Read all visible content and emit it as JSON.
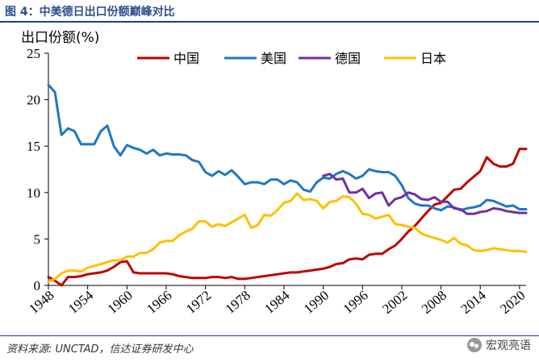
{
  "figure_title": "图 4：中美德日出口份额巅峰对比",
  "source": "资料来源: UNCTAD，信达证券研发中心",
  "watermark": "宏观亮语",
  "chart_data": {
    "type": "line",
    "ylabel": "出口份额(%)",
    "xlabel": "",
    "xlim": [
      1948,
      2021
    ],
    "ylim": [
      0,
      25
    ],
    "yticks": [
      0,
      5,
      10,
      15,
      20,
      25
    ],
    "xticks": [
      "1948",
      "1954",
      "1960",
      "1966",
      "1972",
      "1978",
      "1984",
      "1990",
      "1996",
      "2002",
      "2008",
      "2014",
      "2020"
    ],
    "legend_position": "top",
    "grid": false,
    "series": [
      {
        "name": "中国",
        "color": "#c00000",
        "x": [
          1948,
          1949,
          1950,
          1951,
          1952,
          1953,
          1954,
          1955,
          1956,
          1957,
          1958,
          1959,
          1960,
          1961,
          1962,
          1963,
          1964,
          1965,
          1966,
          1967,
          1968,
          1969,
          1970,
          1971,
          1972,
          1973,
          1974,
          1975,
          1976,
          1977,
          1978,
          1979,
          1980,
          1981,
          1982,
          1983,
          1984,
          1985,
          1986,
          1987,
          1988,
          1989,
          1990,
          1991,
          1992,
          1993,
          1994,
          1995,
          1996,
          1997,
          1998,
          1999,
          2000,
          2001,
          2002,
          2003,
          2004,
          2005,
          2006,
          2007,
          2008,
          2009,
          2010,
          2011,
          2012,
          2013,
          2014,
          2015,
          2016,
          2017,
          2018,
          2019,
          2020,
          2021
        ],
        "y": [
          0.9,
          0.5,
          0.0,
          0.9,
          0.9,
          1.0,
          1.2,
          1.3,
          1.4,
          1.6,
          2.0,
          2.5,
          2.6,
          1.4,
          1.3,
          1.3,
          1.3,
          1.3,
          1.3,
          1.2,
          1.0,
          0.9,
          0.8,
          0.8,
          0.8,
          0.9,
          0.9,
          0.8,
          0.9,
          0.7,
          0.7,
          0.8,
          0.9,
          1.0,
          1.1,
          1.2,
          1.3,
          1.4,
          1.4,
          1.5,
          1.6,
          1.7,
          1.8,
          2.0,
          2.3,
          2.4,
          2.8,
          2.9,
          2.8,
          3.3,
          3.4,
          3.4,
          3.9,
          4.3,
          5.0,
          5.8,
          6.4,
          7.2,
          8.0,
          8.7,
          8.9,
          9.6,
          10.3,
          10.4,
          11.1,
          11.7,
          12.3,
          13.8,
          13.1,
          12.8,
          12.8,
          13.1,
          14.7,
          14.7
        ]
      },
      {
        "name": "美国",
        "color": "#1f77c4",
        "x": [
          1948,
          1949,
          1950,
          1951,
          1952,
          1953,
          1954,
          1955,
          1956,
          1957,
          1958,
          1959,
          1960,
          1961,
          1962,
          1963,
          1964,
          1965,
          1966,
          1967,
          1968,
          1969,
          1970,
          1971,
          1972,
          1973,
          1974,
          1975,
          1976,
          1977,
          1978,
          1979,
          1980,
          1981,
          1982,
          1983,
          1984,
          1985,
          1986,
          1987,
          1988,
          1989,
          1990,
          1991,
          1992,
          1993,
          1994,
          1995,
          1996,
          1997,
          1998,
          1999,
          2000,
          2001,
          2002,
          2003,
          2004,
          2005,
          2006,
          2007,
          2008,
          2009,
          2010,
          2011,
          2012,
          2013,
          2014,
          2015,
          2016,
          2017,
          2018,
          2019,
          2020,
          2021
        ],
        "y": [
          21.6,
          20.8,
          16.2,
          16.9,
          16.6,
          15.2,
          15.2,
          15.2,
          16.6,
          17.2,
          15.0,
          14.0,
          15.1,
          14.8,
          14.6,
          14.2,
          14.6,
          14.0,
          14.2,
          14.1,
          14.1,
          14.0,
          13.5,
          13.3,
          12.2,
          11.8,
          12.3,
          11.9,
          12.4,
          11.7,
          10.9,
          11.1,
          11.1,
          10.9,
          11.4,
          11.4,
          10.9,
          11.3,
          11.1,
          10.3,
          10.1,
          11.1,
          11.6,
          11.5,
          12.0,
          12.3,
          12.0,
          11.5,
          11.8,
          12.5,
          12.3,
          12.2,
          12.2,
          11.8,
          10.8,
          9.4,
          8.8,
          8.6,
          8.6,
          8.3,
          8.1,
          8.5,
          8.4,
          8.1,
          8.3,
          8.4,
          8.6,
          9.2,
          9.1,
          8.8,
          8.5,
          8.6,
          8.2,
          8.2
        ]
      },
      {
        "name": "德国",
        "color": "#7030a0",
        "x": [
          1990,
          1991,
          1992,
          1993,
          1994,
          1995,
          1996,
          1997,
          1998,
          1999,
          2000,
          2001,
          2002,
          2003,
          2004,
          2005,
          2006,
          2007,
          2008,
          2009,
          2010,
          2011,
          2012,
          2013,
          2014,
          2015,
          2016,
          2017,
          2018,
          2019,
          2020,
          2021
        ],
        "y": [
          11.8,
          12.0,
          11.4,
          11.5,
          10.0,
          10.0,
          10.4,
          9.4,
          9.9,
          10.0,
          8.6,
          9.3,
          9.5,
          10.0,
          9.8,
          9.3,
          9.2,
          9.5,
          9.0,
          9.0,
          8.3,
          8.2,
          7.7,
          7.7,
          7.9,
          8.0,
          8.3,
          8.2,
          8.0,
          7.9,
          7.8,
          7.8
        ]
      },
      {
        "name": "日本",
        "color": "#ffc000",
        "x": [
          1948,
          1949,
          1950,
          1951,
          1952,
          1953,
          1954,
          1955,
          1956,
          1957,
          1958,
          1959,
          1960,
          1961,
          1962,
          1963,
          1964,
          1965,
          1966,
          1967,
          1968,
          1969,
          1970,
          1971,
          1972,
          1973,
          1974,
          1975,
          1976,
          1977,
          1978,
          1979,
          1980,
          1981,
          1982,
          1983,
          1984,
          1985,
          1986,
          1987,
          1988,
          1989,
          1990,
          1991,
          1992,
          1993,
          1994,
          1995,
          1996,
          1997,
          1998,
          1999,
          2000,
          2001,
          2002,
          2003,
          2004,
          2005,
          2006,
          2007,
          2008,
          2009,
          2010,
          2011,
          2012,
          2013,
          2014,
          2015,
          2016,
          2017,
          2018,
          2019,
          2020,
          2021
        ],
        "y": [
          0.4,
          0.7,
          1.3,
          1.6,
          1.6,
          1.5,
          1.9,
          2.1,
          2.3,
          2.5,
          2.7,
          2.7,
          3.1,
          3.1,
          3.5,
          3.5,
          3.9,
          4.6,
          4.8,
          4.8,
          5.4,
          5.8,
          6.1,
          6.9,
          6.9,
          6.3,
          6.6,
          6.4,
          6.8,
          7.2,
          7.6,
          6.2,
          6.5,
          7.6,
          7.5,
          8.1,
          8.9,
          9.1,
          9.9,
          9.2,
          9.3,
          9.1,
          8.3,
          9.0,
          9.1,
          9.6,
          9.5,
          8.8,
          7.7,
          7.6,
          7.2,
          7.4,
          7.6,
          6.6,
          6.5,
          6.3,
          6.2,
          5.6,
          5.3,
          5.1,
          4.9,
          4.6,
          5.1,
          4.5,
          4.3,
          3.8,
          3.7,
          3.8,
          4.0,
          3.9,
          3.8,
          3.7,
          3.7,
          3.6
        ]
      }
    ]
  }
}
